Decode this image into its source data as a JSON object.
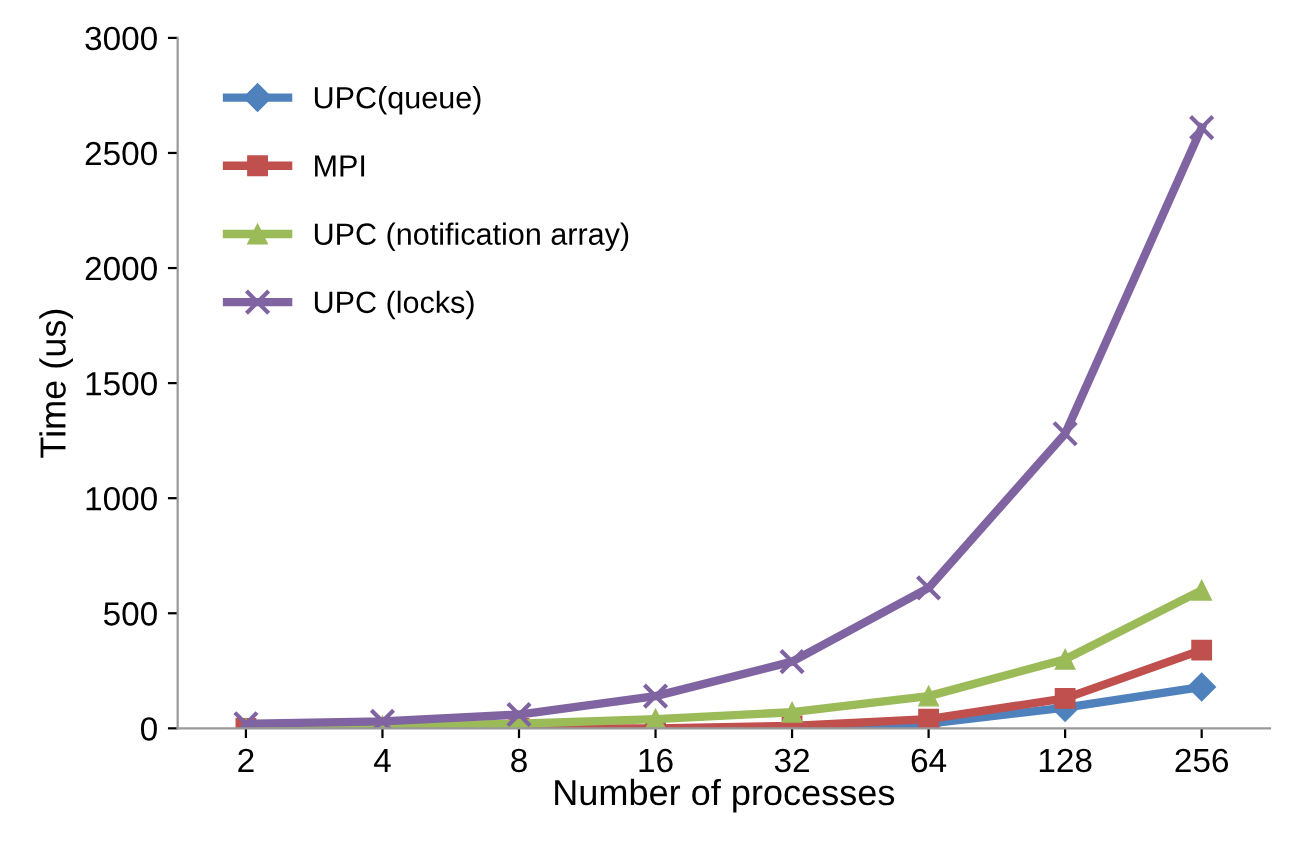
{
  "chart_data": {
    "type": "line",
    "xlabel": "Number of processes",
    "ylabel": "Time (us)",
    "categories": [
      "2",
      "4",
      "8",
      "16",
      "32",
      "64",
      "128",
      "256"
    ],
    "series": [
      {
        "name": "UPC(queue)",
        "color": "#4f81bd",
        "marker": "diamond",
        "values": [
          null,
          null,
          null,
          0,
          0,
          20,
          90,
          180
        ]
      },
      {
        "name": "MPI",
        "color": "#c0504d",
        "marker": "square",
        "values": [
          0,
          0,
          0,
          0,
          10,
          40,
          130,
          340
        ]
      },
      {
        "name": "UPC (notification array)",
        "color": "#9bbb59",
        "marker": "triangle",
        "values": [
          0,
          10,
          20,
          40,
          70,
          140,
          300,
          600
        ]
      },
      {
        "name": "UPC (locks)",
        "color": "#8064a2",
        "marker": "cross",
        "values": [
          20,
          30,
          60,
          140,
          290,
          610,
          1280,
          2610
        ]
      }
    ],
    "ylim": [
      0,
      3000
    ],
    "yticks": [
      0,
      500,
      1000,
      1500,
      2000,
      2500,
      3000
    ],
    "grid": false,
    "legend": "top left",
    "line_style": "solid"
  }
}
